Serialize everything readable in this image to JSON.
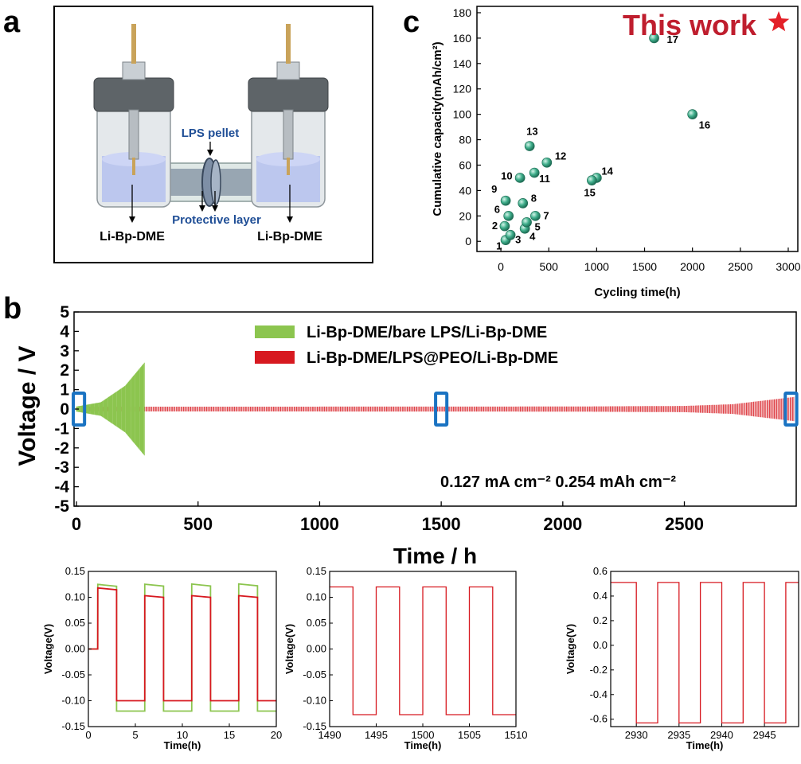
{
  "panel_labels": {
    "a": "a",
    "b": "b",
    "c": "c"
  },
  "schematic": {
    "lps_pellet": "LPS pellet",
    "protective_layer": "Protective layer",
    "left_electrolyte": "Li-Bp-DME",
    "right_electrolyte": "Li-Bp-DME",
    "colors": {
      "electrolyte": "#b7c3ee",
      "cell_body": "#c9cfd4",
      "cap": "#5e6468",
      "rod": "#c9a35a",
      "label_blue": "#1f4e96"
    }
  },
  "chart_data": [
    {
      "id": "c",
      "type": "scatter",
      "title": "This work",
      "xlabel": "Cycling time(h)",
      "ylabel": "Cumulative capacity(mAh/cm²)",
      "xlim": [
        -250,
        3100
      ],
      "ylim": [
        -8,
        185
      ],
      "xticks": [
        0,
        500,
        1000,
        1500,
        2000,
        2500,
        3000
      ],
      "yticks": [
        0,
        20,
        40,
        60,
        80,
        100,
        120,
        140,
        160,
        180
      ],
      "colors": {
        "point": "#3fae8b",
        "title": "#bf1e2e",
        "star": "#e32028"
      },
      "points": [
        {
          "label": "1",
          "x": 50,
          "y": 1
        },
        {
          "label": "2",
          "x": 40,
          "y": 12
        },
        {
          "label": "3",
          "x": 100,
          "y": 5
        },
        {
          "label": "4",
          "x": 250,
          "y": 10
        },
        {
          "label": "5",
          "x": 270,
          "y": 15
        },
        {
          "label": "6",
          "x": 80,
          "y": 20
        },
        {
          "label": "7",
          "x": 360,
          "y": 20
        },
        {
          "label": "8",
          "x": 230,
          "y": 30
        },
        {
          "label": "9",
          "x": 50,
          "y": 32
        },
        {
          "label": "10",
          "x": 200,
          "y": 50
        },
        {
          "label": "11",
          "x": 350,
          "y": 54
        },
        {
          "label": "12",
          "x": 480,
          "y": 62
        },
        {
          "label": "13",
          "x": 300,
          "y": 75
        },
        {
          "label": "14",
          "x": 1000,
          "y": 50
        },
        {
          "label": "15",
          "x": 950,
          "y": 48
        },
        {
          "label": "16",
          "x": 2000,
          "y": 100
        },
        {
          "label": "17",
          "x": 1600,
          "y": 160
        }
      ]
    },
    {
      "id": "b-main",
      "type": "line",
      "xlabel": "Time / h",
      "ylabel": "Voltage / V",
      "xlim": [
        -10,
        2960
      ],
      "ylim": [
        -5,
        5
      ],
      "xticks": [
        0,
        500,
        1000,
        1500,
        2000,
        2500
      ],
      "yticks": [
        -5,
        -4,
        -3,
        -2,
        -1,
        0,
        1,
        2,
        3,
        4,
        5
      ],
      "annotation": "0.127 mA cm⁻²   0.254 mAh cm⁻²",
      "highlight_windows": [
        {
          "x_from": 0,
          "x_to": 20
        },
        {
          "x_from": 1490,
          "x_to": 1510
        },
        {
          "x_from": 2928,
          "x_to": 2949
        }
      ],
      "series": [
        {
          "name": "Li-Bp-DME/bare LPS/Li-Bp-DME",
          "color": "#8cc54f",
          "t_end": 280,
          "amplitude_envelope": [
            {
              "x": 0,
              "y": 0.13
            },
            {
              "x": 100,
              "y": 0.35
            },
            {
              "x": 200,
              "y": 1.2
            },
            {
              "x": 280,
              "y": 2.4
            }
          ]
        },
        {
          "name": "Li-Bp-DME/LPS@PEO/Li-Bp-DME",
          "color": "#d71920",
          "t_end": 2950,
          "amplitude_envelope": [
            {
              "x": 0,
              "y": 0.12
            },
            {
              "x": 2000,
              "y": 0.13
            },
            {
              "x": 2500,
              "y": 0.16
            },
            {
              "x": 2700,
              "y": 0.25
            },
            {
              "x": 2950,
              "y": 0.62
            }
          ]
        }
      ],
      "colors": {
        "window": "#1a73c2"
      }
    },
    {
      "id": "b-inset1",
      "type": "line",
      "xlabel": "Time(h)",
      "ylabel": "Voltage(V)",
      "xlim": [
        0,
        20
      ],
      "ylim": [
        -0.15,
        0.15
      ],
      "xticks": [
        0,
        5,
        10,
        15,
        20
      ],
      "yticks": [
        -0.15,
        -0.1,
        -0.05,
        0.0,
        0.05,
        0.1,
        0.15
      ],
      "period": 5,
      "start": 1,
      "series": [
        {
          "name": "bare LPS",
          "color": "#8cc54f",
          "high": 0.125,
          "low": -0.12,
          "drift": 0.0003
        },
        {
          "name": "LPS@PEO",
          "color": "#d71920",
          "high": 0.103,
          "low": -0.1,
          "first_high": 0.118
        }
      ]
    },
    {
      "id": "b-inset2",
      "type": "line",
      "xlabel": "Time(h)",
      "ylabel": "Voltage(V)",
      "xlim": [
        1490,
        1510
      ],
      "ylim": [
        -0.15,
        0.15
      ],
      "xticks": [
        1490,
        1495,
        1500,
        1505,
        1510
      ],
      "yticks": [
        -0.15,
        -0.1,
        -0.05,
        0.0,
        0.05,
        0.1,
        0.15
      ],
      "period": 5,
      "start": 1490,
      "series": [
        {
          "name": "LPS@PEO",
          "color": "#d71920",
          "high": 0.12,
          "low": -0.127
        }
      ]
    },
    {
      "id": "b-inset3",
      "type": "line",
      "xlabel": "Time(h)",
      "ylabel": "Voltage(V)",
      "xlim": [
        2927,
        2949
      ],
      "ylim": [
        -0.66,
        0.6
      ],
      "xticks": [
        2930,
        2935,
        2940,
        2945
      ],
      "yticks": [
        -0.6,
        -0.4,
        -0.2,
        0.0,
        0.2,
        0.4,
        0.6
      ],
      "period": 5,
      "start": 2927.5,
      "series": [
        {
          "name": "LPS@PEO",
          "color": "#d71920",
          "high": 0.51,
          "low": -0.63
        }
      ]
    }
  ]
}
